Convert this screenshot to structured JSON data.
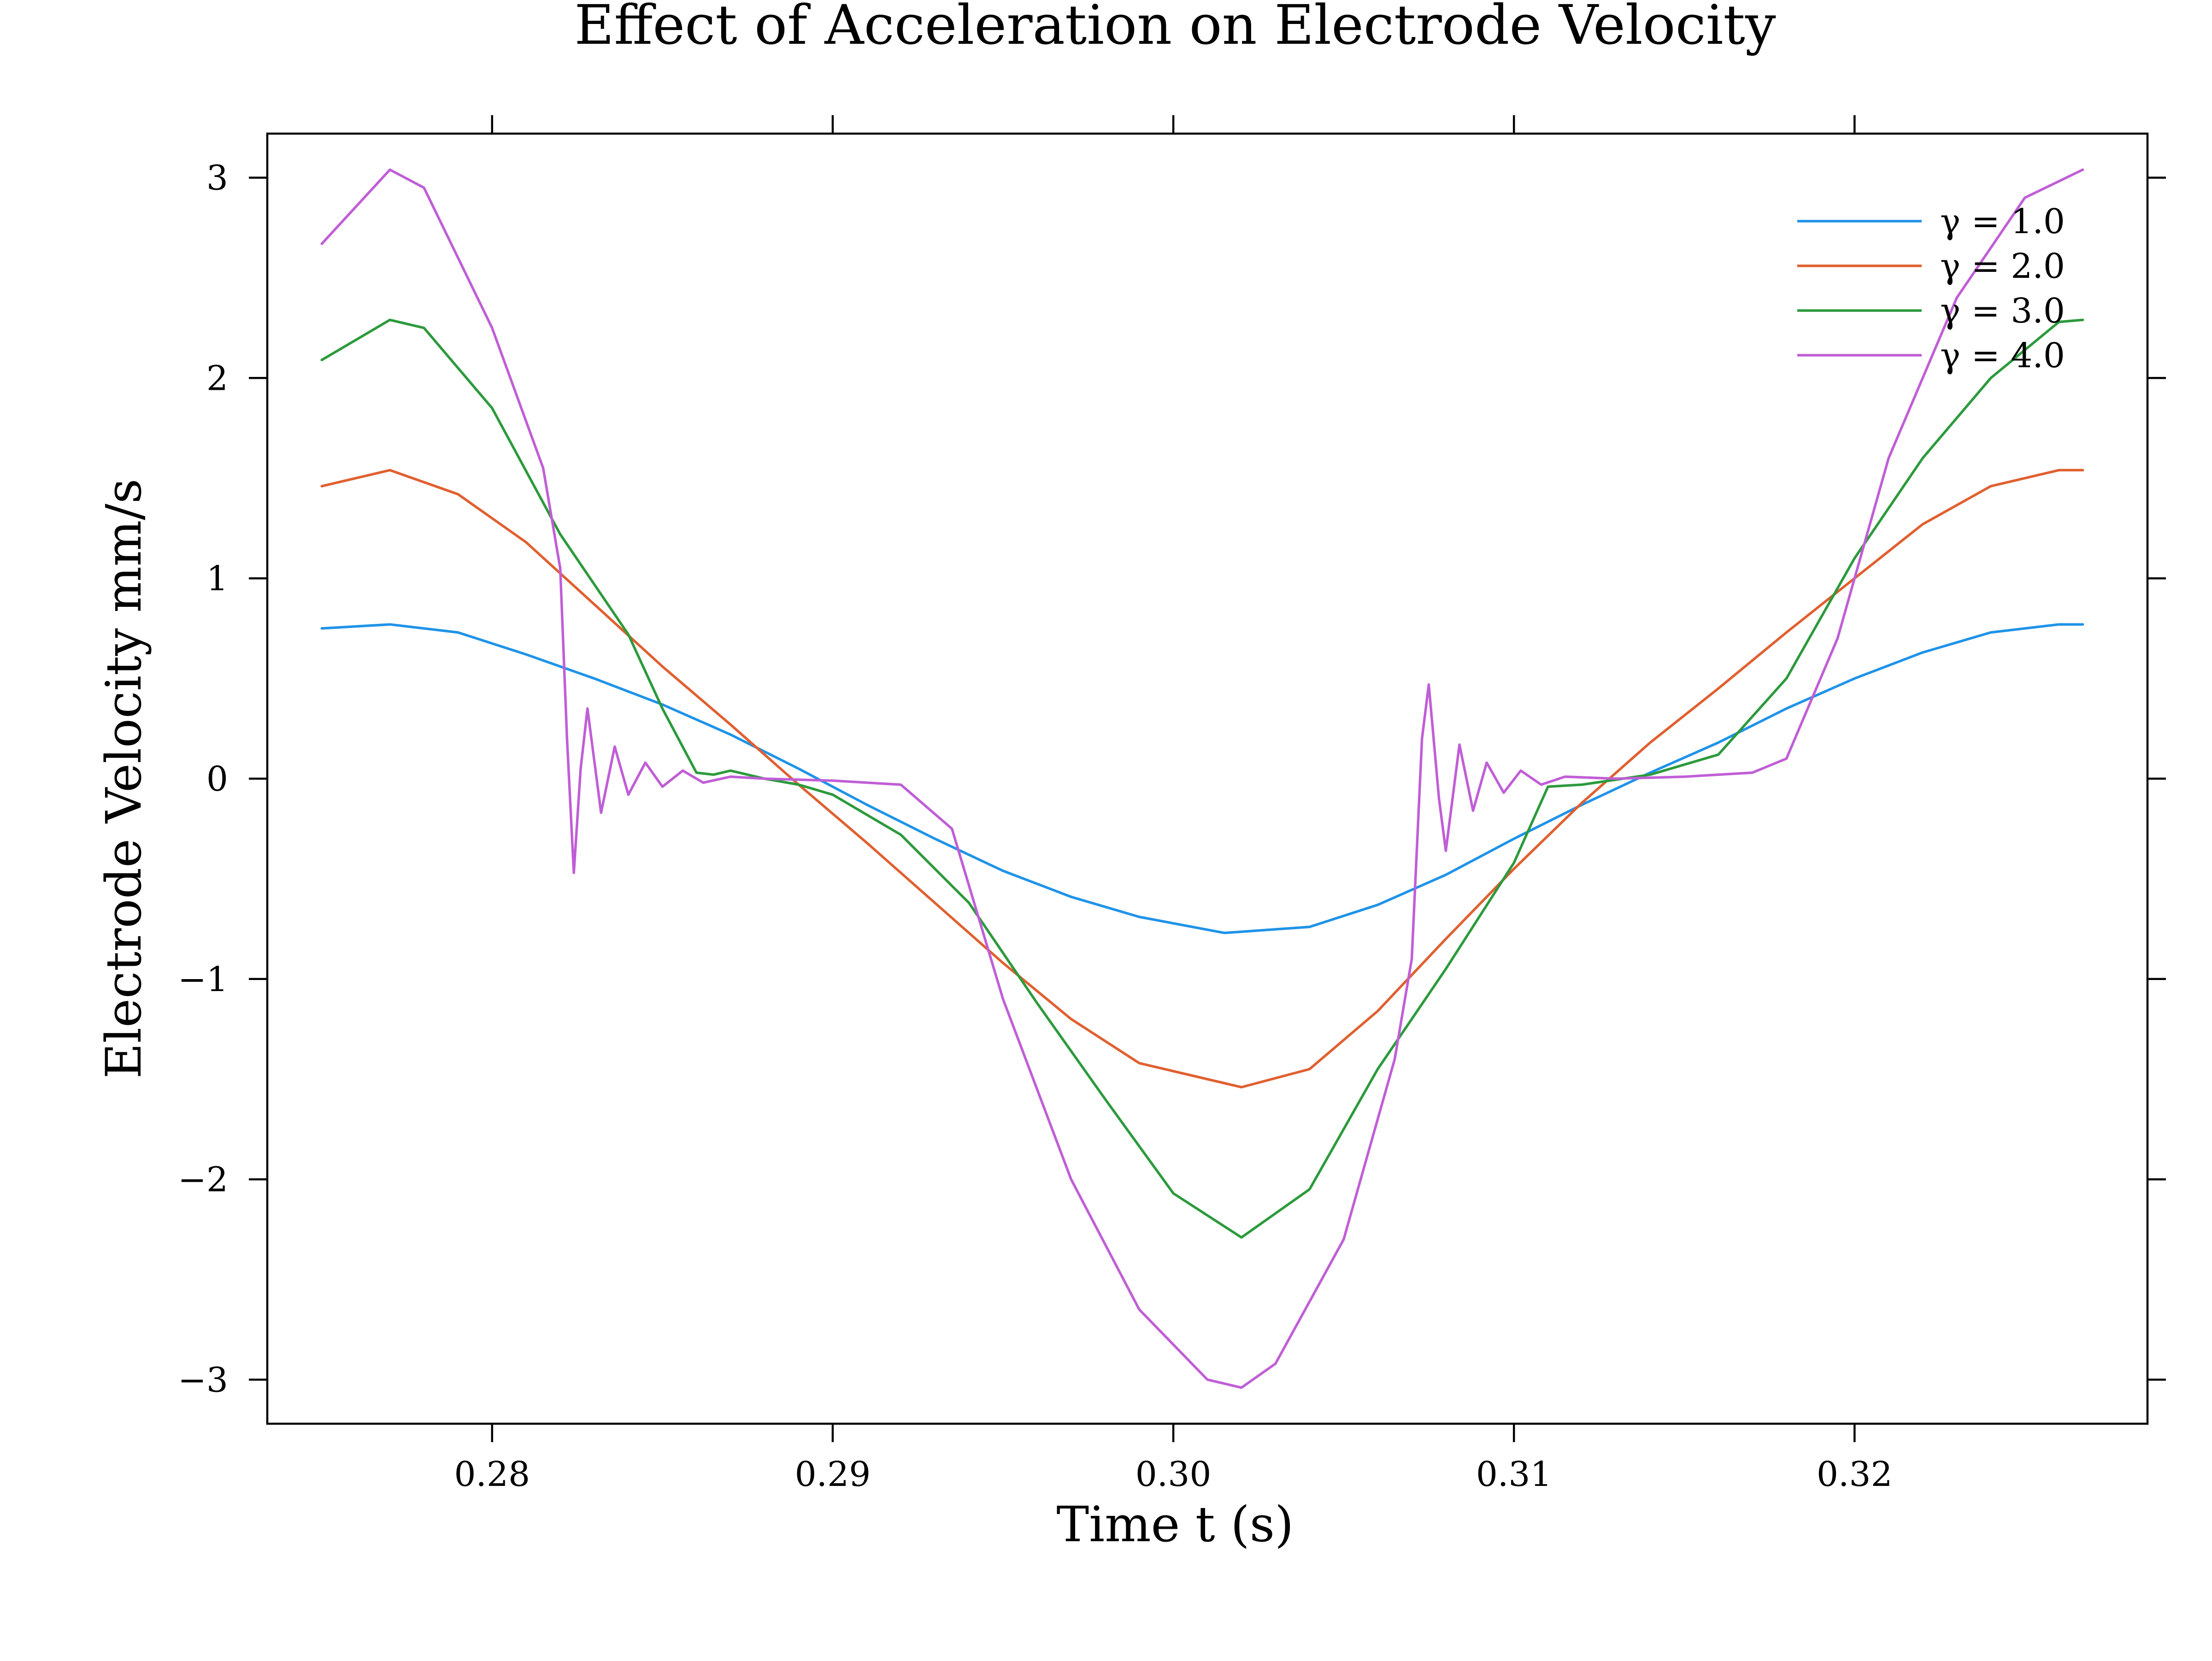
{
  "chart_data": {
    "type": "line",
    "title": "Effect of Acceleration on Electrode Velocity",
    "xlabel": "Time t (s)",
    "ylabel": "Electrode Velocity mm/s",
    "xlim": [
      0.2734,
      0.3286
    ],
    "ylim": [
      -3.22,
      3.22
    ],
    "xticks": [
      0.28,
      0.29,
      0.3,
      0.31,
      0.32
    ],
    "xtick_labels": [
      "0.28",
      "0.29",
      "0.30",
      "0.31",
      "0.32"
    ],
    "yticks": [
      3,
      2,
      1,
      0,
      -1,
      -2,
      -3
    ],
    "ytick_labels": [
      "3",
      "2",
      "1",
      "0",
      "−1",
      "−2",
      "−3"
    ],
    "grid": false,
    "legend_position": "top-right",
    "series": [
      {
        "name": "γ = 1.0",
        "color": "#1f93e8",
        "points": [
          [
            0.275,
            0.75
          ],
          [
            0.277,
            0.77
          ],
          [
            0.279,
            0.73
          ],
          [
            0.281,
            0.62
          ],
          [
            0.283,
            0.5
          ],
          [
            0.285,
            0.37
          ],
          [
            0.287,
            0.22
          ],
          [
            0.289,
            0.05
          ],
          [
            0.291,
            -0.13
          ],
          [
            0.293,
            -0.3
          ],
          [
            0.295,
            -0.46
          ],
          [
            0.297,
            -0.59
          ],
          [
            0.299,
            -0.69
          ],
          [
            0.3015,
            -0.77
          ],
          [
            0.304,
            -0.74
          ],
          [
            0.306,
            -0.63
          ],
          [
            0.308,
            -0.48
          ],
          [
            0.31,
            -0.3
          ],
          [
            0.312,
            -0.13
          ],
          [
            0.314,
            0.03
          ],
          [
            0.316,
            0.18
          ],
          [
            0.318,
            0.35
          ],
          [
            0.32,
            0.5
          ],
          [
            0.322,
            0.63
          ],
          [
            0.324,
            0.73
          ],
          [
            0.326,
            0.77
          ],
          [
            0.3267,
            0.77
          ]
        ]
      },
      {
        "name": "γ = 2.0",
        "color": "#e06030",
        "points": [
          [
            0.275,
            1.46
          ],
          [
            0.277,
            1.54
          ],
          [
            0.279,
            1.42
          ],
          [
            0.281,
            1.18
          ],
          [
            0.283,
            0.87
          ],
          [
            0.285,
            0.56
          ],
          [
            0.287,
            0.27
          ],
          [
            0.289,
            -0.03
          ],
          [
            0.291,
            -0.32
          ],
          [
            0.293,
            -0.62
          ],
          [
            0.295,
            -0.92
          ],
          [
            0.297,
            -1.2
          ],
          [
            0.299,
            -1.42
          ],
          [
            0.302,
            -1.54
          ],
          [
            0.304,
            -1.45
          ],
          [
            0.306,
            -1.16
          ],
          [
            0.308,
            -0.8
          ],
          [
            0.31,
            -0.45
          ],
          [
            0.312,
            -0.12
          ],
          [
            0.314,
            0.18
          ],
          [
            0.316,
            0.45
          ],
          [
            0.318,
            0.73
          ],
          [
            0.32,
            1.0
          ],
          [
            0.322,
            1.27
          ],
          [
            0.324,
            1.46
          ],
          [
            0.326,
            1.54
          ],
          [
            0.3267,
            1.54
          ]
        ]
      },
      {
        "name": "γ = 3.0",
        "color": "#2c9a3c",
        "points": [
          [
            0.275,
            2.09
          ],
          [
            0.277,
            2.29
          ],
          [
            0.278,
            2.25
          ],
          [
            0.28,
            1.85
          ],
          [
            0.282,
            1.22
          ],
          [
            0.284,
            0.72
          ],
          [
            0.285,
            0.35
          ],
          [
            0.286,
            0.03
          ],
          [
            0.2865,
            0.02
          ],
          [
            0.287,
            0.04
          ],
          [
            0.288,
            0.0
          ],
          [
            0.289,
            -0.03
          ],
          [
            0.29,
            -0.08
          ],
          [
            0.292,
            -0.28
          ],
          [
            0.294,
            -0.62
          ],
          [
            0.296,
            -1.12
          ],
          [
            0.298,
            -1.6
          ],
          [
            0.3,
            -2.07
          ],
          [
            0.302,
            -2.29
          ],
          [
            0.304,
            -2.05
          ],
          [
            0.306,
            -1.45
          ],
          [
            0.308,
            -0.95
          ],
          [
            0.31,
            -0.42
          ],
          [
            0.311,
            -0.04
          ],
          [
            0.312,
            -0.03
          ],
          [
            0.314,
            0.02
          ],
          [
            0.316,
            0.12
          ],
          [
            0.318,
            0.5
          ],
          [
            0.32,
            1.1
          ],
          [
            0.322,
            1.6
          ],
          [
            0.324,
            2.0
          ],
          [
            0.326,
            2.28
          ],
          [
            0.3267,
            2.29
          ]
        ]
      },
      {
        "name": "γ = 4.0",
        "color": "#c05ed6",
        "points": [
          [
            0.275,
            2.67
          ],
          [
            0.277,
            3.04
          ],
          [
            0.278,
            2.95
          ],
          [
            0.28,
            2.25
          ],
          [
            0.2815,
            1.55
          ],
          [
            0.282,
            1.05
          ],
          [
            0.2822,
            0.2
          ],
          [
            0.2824,
            -0.47
          ],
          [
            0.2826,
            0.05
          ],
          [
            0.2828,
            0.35
          ],
          [
            0.2832,
            -0.17
          ],
          [
            0.2836,
            0.16
          ],
          [
            0.284,
            -0.08
          ],
          [
            0.2845,
            0.08
          ],
          [
            0.285,
            -0.04
          ],
          [
            0.2856,
            0.04
          ],
          [
            0.2862,
            -0.02
          ],
          [
            0.287,
            0.01
          ],
          [
            0.288,
            0.0
          ],
          [
            0.29,
            -0.01
          ],
          [
            0.292,
            -0.03
          ],
          [
            0.2935,
            -0.25
          ],
          [
            0.295,
            -1.1
          ],
          [
            0.297,
            -2.0
          ],
          [
            0.299,
            -2.65
          ],
          [
            0.301,
            -3.0
          ],
          [
            0.302,
            -3.04
          ],
          [
            0.303,
            -2.92
          ],
          [
            0.305,
            -2.3
          ],
          [
            0.3065,
            -1.4
          ],
          [
            0.307,
            -0.9
          ],
          [
            0.3073,
            0.2
          ],
          [
            0.3075,
            0.47
          ],
          [
            0.3078,
            -0.1
          ],
          [
            0.308,
            -0.36
          ],
          [
            0.3084,
            0.17
          ],
          [
            0.3088,
            -0.16
          ],
          [
            0.3092,
            0.08
          ],
          [
            0.3097,
            -0.07
          ],
          [
            0.3102,
            0.04
          ],
          [
            0.3108,
            -0.03
          ],
          [
            0.3115,
            0.01
          ],
          [
            0.313,
            0.0
          ],
          [
            0.315,
            0.01
          ],
          [
            0.317,
            0.03
          ],
          [
            0.318,
            0.1
          ],
          [
            0.3195,
            0.7
          ],
          [
            0.321,
            1.6
          ],
          [
            0.323,
            2.4
          ],
          [
            0.325,
            2.9
          ],
          [
            0.3267,
            3.04
          ]
        ]
      }
    ]
  }
}
